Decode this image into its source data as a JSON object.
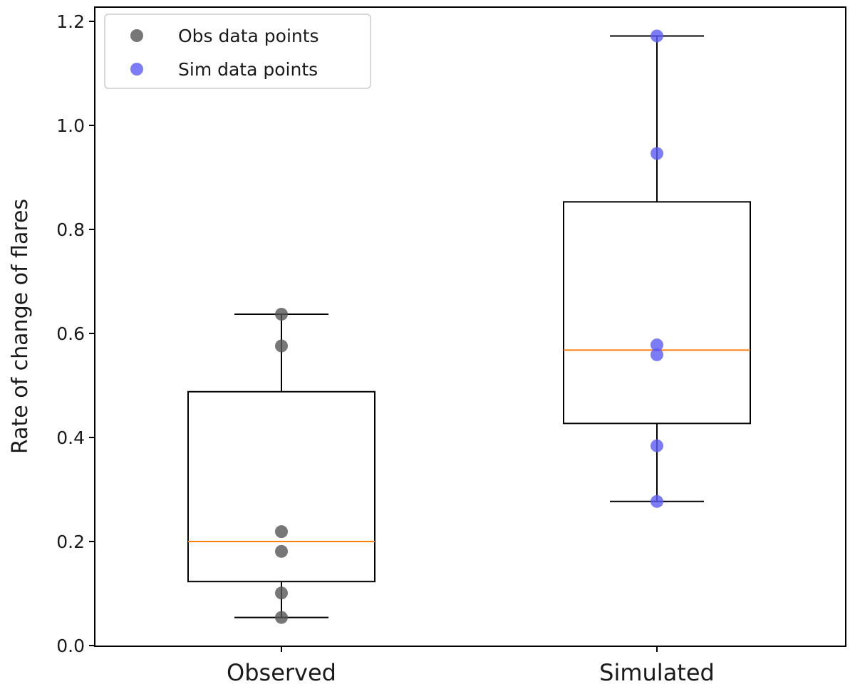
{
  "chart_data": {
    "type": "box",
    "title": "",
    "xlabel": "",
    "ylabel": "Rate of change of flares",
    "ylim": [
      0.0,
      1.2
    ],
    "yticks": [
      "0.0",
      "0.2",
      "0.4",
      "0.6",
      "0.8",
      "1.0",
      "1.2"
    ],
    "categories": [
      "Observed",
      "Simulated"
    ],
    "boxes": [
      {
        "category": "Observed",
        "whisker_low": 0.054,
        "q1": 0.123,
        "median": 0.2,
        "q3": 0.488,
        "whisker_high": 0.637
      },
      {
        "category": "Simulated",
        "whisker_low": 0.277,
        "q1": 0.427,
        "median": 0.568,
        "q3": 0.853,
        "whisker_high": 1.172
      }
    ],
    "series": [
      {
        "name": "Obs data points",
        "color": "#555555",
        "category": "Observed",
        "values": [
          0.637,
          0.576,
          0.219,
          0.181,
          0.101,
          0.054
        ]
      },
      {
        "name": "Sim data points",
        "color": "#5b5bf5",
        "category": "Simulated",
        "values": [
          1.172,
          0.946,
          0.578,
          0.559,
          0.384,
          0.277
        ]
      }
    ],
    "median_color": "#ff7f0e",
    "grid": false,
    "legend_position": "top-left"
  }
}
